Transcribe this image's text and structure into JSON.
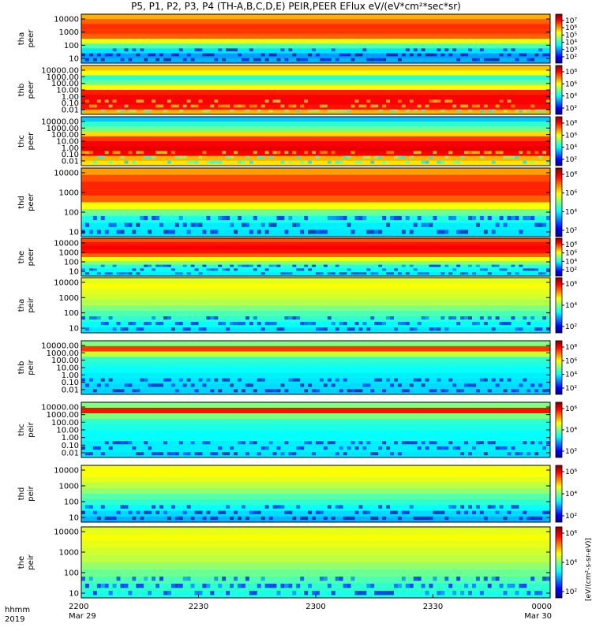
{
  "title": "P5, P1, P2, P3, P4 (TH-A,B,C,D,E) PEIR,PEER EFlux eV/(eV*cm²*sec*sr)",
  "time_axis": {
    "row1_label": "hhmm",
    "row2_label": "2019",
    "ticks": [
      {
        "label": "2200",
        "sub": "Mar 29",
        "frac": 0.0
      },
      {
        "label": "2230",
        "sub": "",
        "frac": 0.25
      },
      {
        "label": "2300",
        "sub": "",
        "frac": 0.5
      },
      {
        "label": "2330",
        "sub": "",
        "frac": 0.75
      },
      {
        "label": "0000",
        "sub": "Mar 30",
        "frac": 1.0
      }
    ]
  },
  "colorbar_units": "[eV/(cm²-s-sr-eV)]",
  "colors": {
    "jet": [
      "#000080",
      "#0000ff",
      "#0080ff",
      "#00ffff",
      "#80ff80",
      "#ffff00",
      "#ff8000",
      "#ff0000",
      "#800000"
    ]
  },
  "chart_data": {
    "type": "heatmap",
    "x": {
      "start": "2019-03-29 22:00",
      "end": "2019-03-30 00:00"
    },
    "panels": [
      {
        "id": "tha-peer",
        "ylabel": [
          "tha",
          "peer"
        ],
        "yticks": [
          "10000",
          "1000",
          "100",
          "10"
        ],
        "log": true,
        "cbar": [
          "10⁷",
          "10⁶",
          "10⁵",
          "10⁴",
          "10³",
          "10²"
        ],
        "profile": [
          0.7,
          0.78,
          0.83,
          0.82,
          0.78,
          0.6,
          0.45,
          0.35,
          0.28,
          0.3
        ]
      },
      {
        "id": "thb-peer",
        "ylabel": [
          "thb",
          "peer"
        ],
        "yticks": [
          "10000.00",
          "1000.00",
          "100.00",
          "10.00",
          "1.00",
          "0.10",
          "0.01"
        ],
        "log": true,
        "cbar": [
          "10⁸",
          "10⁶",
          "10⁴",
          "10²"
        ],
        "profile": [
          0.68,
          0.62,
          0.42,
          0.48,
          0.62,
          0.85,
          0.88,
          0.88,
          0.86,
          0.7
        ]
      },
      {
        "id": "thc-peer",
        "ylabel": [
          "thc",
          "peer"
        ],
        "yticks": [
          "10000.00",
          "1000.00",
          "100.00",
          "10.00",
          "1.00",
          "0.10",
          "0.01"
        ],
        "log": true,
        "cbar": [
          "10⁸",
          "10⁶",
          "10⁴",
          "10²"
        ],
        "profile": [
          0.32,
          0.42,
          0.48,
          0.66,
          0.82,
          0.88,
          0.9,
          0.88,
          0.7,
          0.65
        ]
      },
      {
        "id": "thd-peer",
        "ylabel": [
          "thd",
          "peer"
        ],
        "yticks": [
          "10000",
          "1000",
          "100",
          "10"
        ],
        "log": true,
        "cbar": [
          "10⁸",
          "10⁶",
          "10⁴",
          "10²"
        ],
        "profile": [
          0.72,
          0.8,
          0.84,
          0.84,
          0.78,
          0.62,
          0.48,
          0.4,
          0.36,
          0.35
        ]
      },
      {
        "id": "the-peer",
        "ylabel": [
          "the",
          "peer"
        ],
        "yticks": [
          "10000",
          "1000",
          "100",
          "10"
        ],
        "log": true,
        "cbar": [
          "10⁸",
          "10⁶",
          "10⁴",
          "10²"
        ],
        "profile": [
          0.8,
          0.86,
          0.88,
          0.86,
          0.78,
          0.62,
          0.5,
          0.42,
          0.38,
          0.36
        ]
      },
      {
        "id": "tha-peir",
        "ylabel": [
          "tha",
          "peir"
        ],
        "yticks": [
          "10000",
          "1000",
          "100",
          "10"
        ],
        "log": true,
        "cbar": [
          "10⁶",
          "10⁴",
          "10²"
        ],
        "profile": [
          0.6,
          0.62,
          0.6,
          0.58,
          0.55,
          0.5,
          0.45,
          0.42,
          0.38,
          0.35
        ]
      },
      {
        "id": "thb-peir",
        "ylabel": [
          "thb",
          "peir"
        ],
        "yticks": [
          "10000.00",
          "1000.00",
          "100.00",
          "10.00",
          "1.00",
          "0.10",
          "0.01"
        ],
        "log": true,
        "cbar": [
          "10⁸",
          "10⁶",
          "10⁴",
          "10²"
        ],
        "profile": [
          0.5,
          0.82,
          0.58,
          0.42,
          0.4,
          0.38,
          0.36,
          0.35,
          0.34,
          0.33
        ]
      },
      {
        "id": "thc-peir",
        "ylabel": [
          "thc",
          "peir"
        ],
        "yticks": [
          "10000.00",
          "1000.00",
          "100.00",
          "10.00",
          "1.00",
          "0.10",
          "0.01"
        ],
        "log": true,
        "cbar": [
          "10⁶",
          "10⁴",
          "10²"
        ],
        "profile": [
          0.5,
          0.86,
          0.5,
          0.42,
          0.4,
          0.38,
          0.38,
          0.36,
          0.36,
          0.35
        ]
      },
      {
        "id": "thd-peir",
        "ylabel": [
          "thd",
          "peir"
        ],
        "yticks": [
          "10000",
          "1000",
          "100",
          "10"
        ],
        "log": true,
        "cbar": [
          "10⁶",
          "10⁴",
          "10²"
        ],
        "profile": [
          0.62,
          0.62,
          0.6,
          0.56,
          0.52,
          0.46,
          0.42,
          0.38,
          0.34,
          0.3
        ]
      },
      {
        "id": "the-peir",
        "ylabel": [
          "the",
          "peir"
        ],
        "yticks": [
          "10000",
          "1000",
          "100",
          "10"
        ],
        "log": true,
        "cbar": [
          "10⁶",
          "10⁴",
          "10²"
        ],
        "profile": [
          0.6,
          0.62,
          0.6,
          0.58,
          0.56,
          0.52,
          0.48,
          0.45,
          0.42,
          0.4
        ]
      }
    ]
  }
}
